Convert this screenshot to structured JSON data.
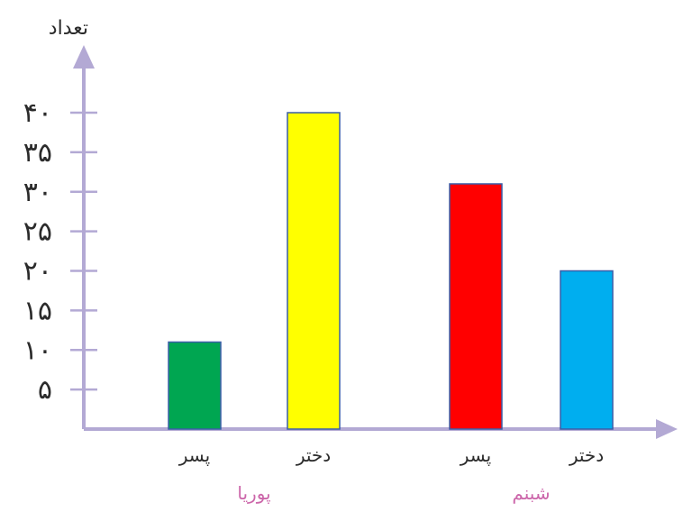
{
  "chart_data": {
    "type": "bar",
    "ylabel": "تعداد",
    "ylim": [
      0,
      40
    ],
    "yticks": [
      {
        "value": 5,
        "label": "۵"
      },
      {
        "value": 10,
        "label": "۱۰"
      },
      {
        "value": 15,
        "label": "۱۵"
      },
      {
        "value": 20,
        "label": "۲۰"
      },
      {
        "value": 25,
        "label": "۲۵"
      },
      {
        "value": 30,
        "label": "۳۰"
      },
      {
        "value": 35,
        "label": "۳۵"
      },
      {
        "value": 40,
        "label": "۴۰"
      }
    ],
    "groups": [
      {
        "name": "پوریا",
        "bars": [
          {
            "category": "پسر",
            "value": 11,
            "color": "#00a651"
          },
          {
            "category": "دختر",
            "value": 40,
            "color": "#ffff00"
          }
        ]
      },
      {
        "name": "شبنم",
        "bars": [
          {
            "category": "پسر",
            "value": 31,
            "color": "#ff0000"
          },
          {
            "category": "دختر",
            "value": 20,
            "color": "#00aeef"
          }
        ]
      }
    ],
    "group_label_color": "#cc66aa",
    "axis_color": "#b3a9d4",
    "bar_outline_color": "#3a5ea8",
    "grid": false
  }
}
